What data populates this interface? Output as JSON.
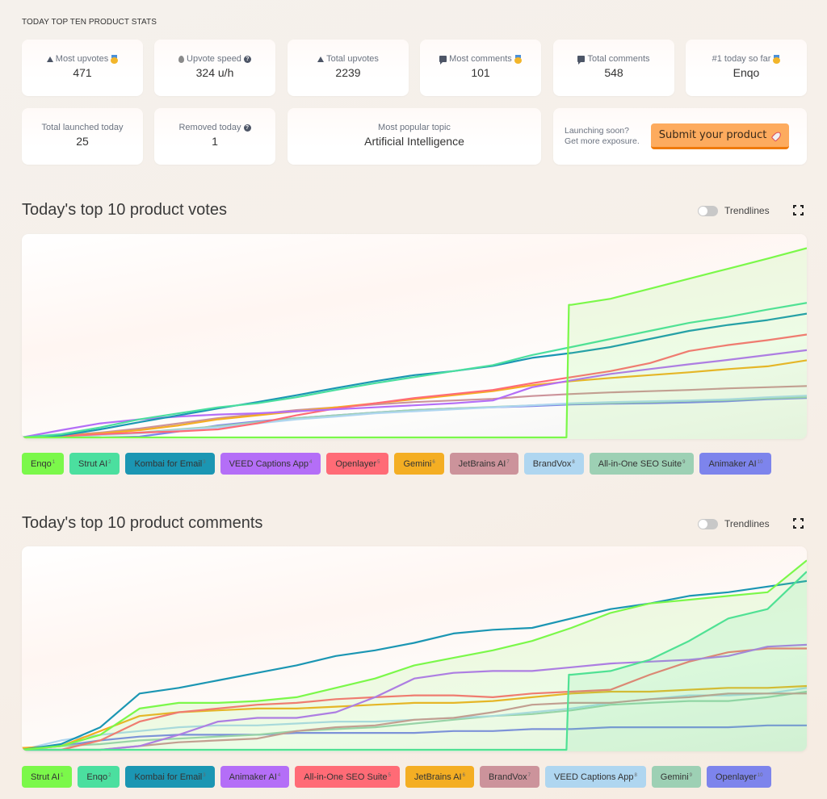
{
  "stats_heading": "TODAY TOP TEN PRODUCT STATS",
  "stats": {
    "most_upvotes": {
      "label": "Most upvotes",
      "value": "471",
      "icon": "upvote-triangle-icon",
      "badge": "medal-icon"
    },
    "upvote_speed": {
      "label": "Upvote speed",
      "value": "324 u/h",
      "icon": "drop-icon",
      "help": "help-icon"
    },
    "total_upvotes": {
      "label": "Total upvotes",
      "value": "2239",
      "icon": "upvote-triangle-icon"
    },
    "most_comments": {
      "label": "Most comments",
      "value": "101",
      "icon": "comment-icon",
      "badge": "medal-icon"
    },
    "total_comments": {
      "label": "Total comments",
      "value": "548",
      "icon": "comment-icon"
    },
    "top_today": {
      "label": "#1 today so far",
      "value": "Enqo",
      "badge": "medal-icon"
    },
    "total_launched": {
      "label": "Total launched today",
      "value": "25"
    },
    "removed_today": {
      "label": "Removed today",
      "value": "1",
      "help": "help-icon"
    },
    "popular_topic": {
      "label": "Most popular topic",
      "value": "Artificial Intelligence"
    }
  },
  "promo": {
    "line1": "Launching soon?",
    "line2": "Get more exposure.",
    "button_label": "Submit your product",
    "button_icon": "rocket-icon",
    "button_color": "#fdab5e"
  },
  "trendlines_label": "Trendlines",
  "chart_data": [
    {
      "type": "line",
      "title": "Today's top 10 product votes",
      "xlabel": "",
      "ylabel": "",
      "x": [
        0,
        5,
        10,
        15,
        20,
        25,
        30,
        35,
        40,
        45,
        50,
        55,
        60,
        65,
        70,
        75,
        80,
        85,
        90,
        95,
        100
      ],
      "ylim": [
        0,
        490
      ],
      "grid": false,
      "legend_position": "bottom",
      "series": [
        {
          "name": "Enqo",
          "rank": "1",
          "color": "#7bf84a",
          "fill": true,
          "values": [
            0,
            0,
            0,
            0,
            0,
            0,
            0,
            0,
            0,
            0,
            0,
            0,
            0,
            0,
            330,
            345,
            370,
            395,
            420,
            445,
            471
          ]
        },
        {
          "name": "Strut AI",
          "rank": "2",
          "color": "#4bdf9f",
          "values": [
            0,
            8,
            25,
            45,
            60,
            75,
            85,
            100,
            118,
            135,
            150,
            165,
            180,
            205,
            225,
            245,
            265,
            285,
            300,
            318,
            335
          ]
        },
        {
          "name": "Kombai for Email",
          "rank": "3",
          "color": "#1b96b3",
          "values": [
            0,
            5,
            20,
            38,
            55,
            72,
            88,
            105,
            123,
            140,
            155,
            165,
            178,
            198,
            210,
            225,
            245,
            265,
            280,
            292,
            308
          ]
        },
        {
          "name": "VEED Captions App",
          "rank": "4",
          "color": "#b46ef7",
          "values": [
            0,
            18,
            35,
            45,
            52,
            57,
            60,
            65,
            70,
            75,
            80,
            85,
            92,
            125,
            142,
            158,
            170,
            182,
            193,
            205,
            217
          ]
        },
        {
          "name": "Openlayer",
          "rank": "5",
          "color": "#ff6b76",
          "values": [
            0,
            3,
            8,
            12,
            15,
            20,
            35,
            55,
            72,
            85,
            98,
            108,
            118,
            135,
            150,
            165,
            185,
            215,
            230,
            242,
            256
          ]
        },
        {
          "name": "Gemini",
          "rank": "6",
          "color": "#f4ae23",
          "values": [
            0,
            3,
            10,
            18,
            30,
            45,
            55,
            65,
            75,
            85,
            95,
            105,
            115,
            130,
            140,
            148,
            155,
            162,
            170,
            177,
            192
          ]
        },
        {
          "name": "JetBrains AI",
          "rank": "7",
          "color": "#cc939b",
          "values": [
            0,
            5,
            12,
            22,
            35,
            48,
            58,
            68,
            75,
            82,
            88,
            92,
            96,
            103,
            108,
            112,
            115,
            118,
            122,
            125,
            128
          ]
        },
        {
          "name": "BrandVox",
          "rank": "8",
          "color": "#afd6f0",
          "values": [
            0,
            2,
            6,
            10,
            18,
            25,
            35,
            45,
            52,
            60,
            65,
            70,
            75,
            80,
            85,
            88,
            90,
            92,
            95,
            100,
            104
          ]
        },
        {
          "name": "All-in-One SEO Suite",
          "rank": "9",
          "color": "#9dd0b4",
          "values": [
            0,
            0,
            6,
            12,
            20,
            28,
            38,
            48,
            55,
            62,
            68,
            72,
            76,
            80,
            84,
            86,
            88,
            91,
            93,
            97,
            100
          ]
        },
        {
          "name": "Animaker AI",
          "rank": "10",
          "color": "#7d84ec",
          "values": [
            0,
            0,
            0,
            2,
            15,
            30,
            40,
            48,
            55,
            62,
            68,
            72,
            75,
            78,
            82,
            84,
            85,
            87,
            90,
            95,
            98
          ]
        }
      ]
    },
    {
      "type": "line",
      "title": "Today's top 10 product comments",
      "xlabel": "",
      "ylabel": "",
      "x": [
        0,
        5,
        10,
        15,
        20,
        25,
        30,
        35,
        40,
        45,
        50,
        55,
        60,
        65,
        70,
        75,
        80,
        85,
        90,
        95,
        100
      ],
      "ylim": [
        0,
        105
      ],
      "grid": false,
      "legend_position": "bottom",
      "series": [
        {
          "name": "Strut AI",
          "rank": "1",
          "color": "#7bf84a",
          "fill": true,
          "values": [
            0,
            2,
            8,
            22,
            25,
            25,
            26,
            28,
            33,
            38,
            45,
            49,
            53,
            58,
            65,
            73,
            78,
            80,
            82,
            84,
            101
          ]
        },
        {
          "name": "Enqo",
          "rank": "2",
          "color": "#4bdf9f",
          "fill": true,
          "values": [
            0,
            0,
            0,
            0,
            0,
            0,
            0,
            0,
            0,
            0,
            0,
            0,
            0,
            0,
            40,
            42,
            48,
            58,
            70,
            75,
            95
          ]
        },
        {
          "name": "Kombai for Email",
          "rank": "3",
          "color": "#1b96b3",
          "values": [
            0,
            3,
            12,
            30,
            33,
            37,
            41,
            45,
            50,
            53,
            57,
            62,
            64,
            65,
            70,
            75,
            78,
            82,
            84,
            87,
            90
          ]
        },
        {
          "name": "Animaker AI",
          "rank": "4",
          "color": "#b46ef7",
          "values": [
            0,
            0,
            0,
            2,
            8,
            15,
            17,
            17,
            20,
            28,
            38,
            41,
            42,
            42,
            44,
            46,
            47,
            48,
            50,
            55,
            56
          ]
        },
        {
          "name": "All-in-One SEO Suite",
          "rank": "5",
          "color": "#ff6b76",
          "values": [
            0,
            0,
            5,
            15,
            20,
            22,
            24,
            25,
            27,
            28,
            29,
            29,
            28,
            30,
            31,
            32,
            40,
            47,
            52,
            54,
            54
          ]
        },
        {
          "name": "JetBrains AI",
          "rank": "6",
          "color": "#f4ae23",
          "values": [
            1,
            2,
            10,
            18,
            20,
            21,
            22,
            22,
            23,
            24,
            25,
            25,
            26,
            28,
            30,
            31,
            31,
            32,
            33,
            33,
            34
          ]
        },
        {
          "name": "BrandVox",
          "rank": "7",
          "color": "#cc939b",
          "values": [
            0,
            0,
            0,
            2,
            4,
            5,
            6,
            10,
            12,
            13,
            16,
            17,
            20,
            24,
            25,
            25,
            27,
            28,
            30,
            30,
            30
          ]
        },
        {
          "name": "VEED Captions App",
          "rank": "8",
          "color": "#afd6f0",
          "values": [
            0,
            5,
            8,
            10,
            12,
            13,
            13,
            14,
            15,
            15,
            16,
            17,
            18,
            20,
            22,
            25,
            27,
            29,
            29,
            30,
            33
          ]
        },
        {
          "name": "Gemini",
          "rank": "9",
          "color": "#9dd0b4",
          "values": [
            0,
            2,
            3,
            5,
            6,
            7,
            8,
            10,
            11,
            12,
            14,
            16,
            18,
            19,
            21,
            24,
            25,
            26,
            26,
            28,
            31
          ]
        },
        {
          "name": "Openlayer",
          "rank": "10",
          "color": "#7d84ec",
          "values": [
            0,
            2,
            5,
            7,
            8,
            8,
            8,
            9,
            9,
            9,
            9,
            10,
            10,
            11,
            11,
            12,
            12,
            12,
            12,
            13,
            13
          ]
        }
      ]
    }
  ]
}
